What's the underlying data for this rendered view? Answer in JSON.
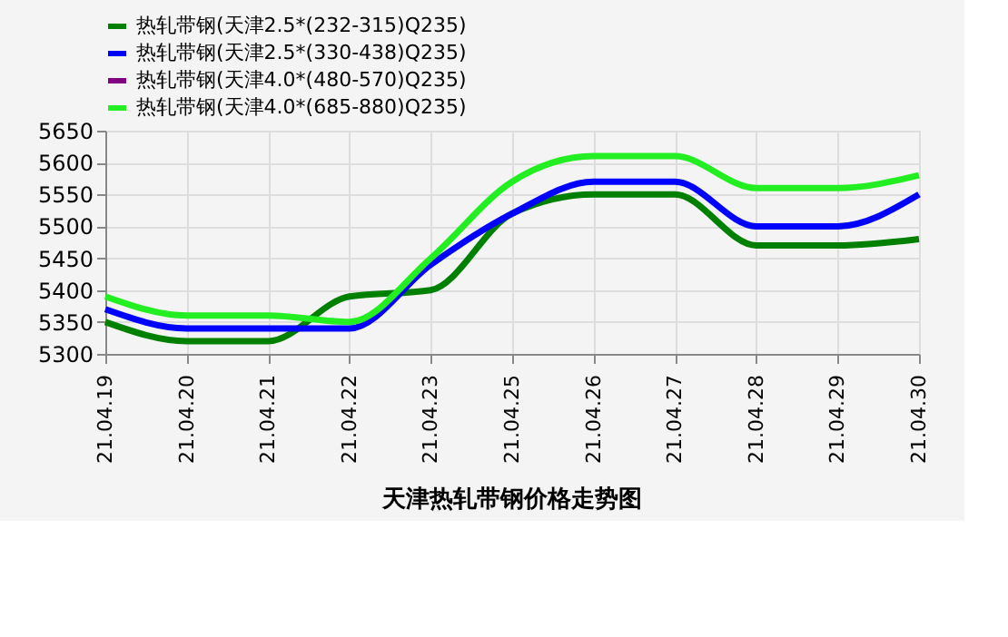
{
  "chart_data": {
    "type": "line",
    "title": "天津热轧带钢价格走势图",
    "categories": [
      "21.04.19",
      "21.04.20",
      "21.04.21",
      "21.04.22",
      "21.04.23",
      "21.04.25",
      "21.04.26",
      "21.04.27",
      "21.04.28",
      "21.04.29",
      "21.04.30"
    ],
    "series": [
      {
        "name": "热轧带钢(天津2.5*(232-315)Q235)",
        "color": "#008000",
        "values": [
          5350,
          5320,
          5320,
          5390,
          5400,
          5520,
          5550,
          5550,
          5470,
          5470,
          5480
        ]
      },
      {
        "name": "热轧带钢(天津2.5*(330-438)Q235)",
        "color": "#0000ff",
        "values": [
          5370,
          5340,
          5340,
          5340,
          5440,
          5520,
          5570,
          5570,
          5500,
          5500,
          5550
        ]
      },
      {
        "name": "热轧带钢(天津4.0*(480-570)Q235)",
        "color": "#800080",
        "values": [
          null,
          null,
          null,
          null,
          null,
          null,
          null,
          null,
          null,
          null,
          null
        ]
      },
      {
        "name": "热轧带钢(天津4.0*(685-880)Q235)",
        "color": "#22ee22",
        "values": [
          5390,
          5360,
          5360,
          5350,
          5450,
          5570,
          5610,
          5610,
          5560,
          5560,
          5580
        ]
      }
    ],
    "ylim": [
      5300,
      5650
    ],
    "yticks": [
      5300,
      5350,
      5400,
      5450,
      5500,
      5550,
      5600,
      5650
    ],
    "grid": true,
    "legend": "top",
    "marker": "none",
    "line_style": "solid"
  }
}
